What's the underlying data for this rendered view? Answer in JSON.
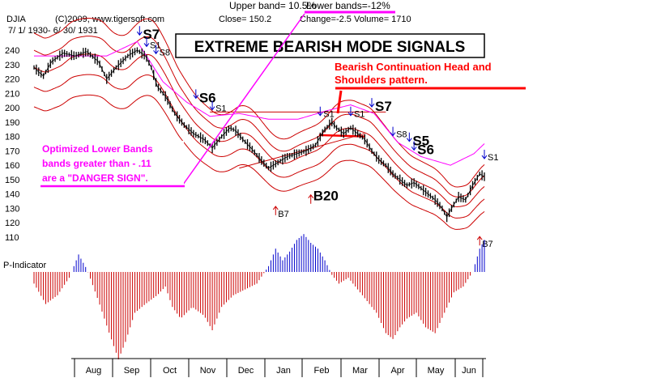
{
  "header": {
    "symbol": "DJIA",
    "copyright": "(C)2009, www.tigersoft.com",
    "close": "Close=  150.2",
    "change": "Change=-2.5",
    "volume": "Volume= 1710",
    "date_range": "7/ 1/ 1930- 6/ 30/ 1931",
    "upper_band": "Upper band= 10.5%",
    "lower_band": "Lower bands=-12%"
  },
  "title_box": "EXTREME BEARISH MODE SIGNALS",
  "annotations": {
    "head_shoulders_1": "Bearish Continuation Head and",
    "head_shoulders_2": "Shoulders pattern.",
    "optimized_1": "Optimized Lower Bands",
    "optimized_2": "bands greater than - .11",
    "optimized_3": "are a \"DANGER SIGN\"."
  },
  "colors": {
    "price": "#000000",
    "bands": "#cc0000",
    "outer_band": "#ff00ff",
    "annotation_red": "#ff0000",
    "annotation_magenta": "#ff00ff",
    "indicator_pos": "#0000cc",
    "indicator_neg": "#cc0000",
    "signal_arrow": "#0000cc",
    "buy_arrow": "#cc0000"
  },
  "chart_data": {
    "type": "line",
    "title": "EXTREME BEARISH MODE SIGNALS",
    "y_ticks": [
      240,
      230,
      220,
      210,
      200,
      190,
      180,
      170,
      160,
      150,
      140,
      130,
      120,
      110
    ],
    "ylim": [
      105,
      248
    ],
    "months": [
      "Aug",
      "Sep",
      "Oct",
      "Nov",
      "Dec",
      "Jan",
      "Feb",
      "Mar",
      "Apr",
      "May",
      "Jun"
    ],
    "price": {
      "name": "DJIA",
      "points": [
        [
          0,
          228
        ],
        [
          8,
          222
        ],
        [
          15,
          232
        ],
        [
          25,
          238
        ],
        [
          35,
          236
        ],
        [
          45,
          239
        ],
        [
          55,
          232
        ],
        [
          62,
          220
        ],
        [
          70,
          228
        ],
        [
          80,
          236
        ],
        [
          88,
          240
        ],
        [
          95,
          236
        ],
        [
          100,
          228
        ],
        [
          105,
          215
        ],
        [
          112,
          208
        ],
        [
          120,
          196
        ],
        [
          128,
          188
        ],
        [
          136,
          182
        ],
        [
          145,
          178
        ],
        [
          152,
          172
        ],
        [
          160,
          180
        ],
        [
          167,
          186
        ],
        [
          172,
          184
        ],
        [
          178,
          178
        ],
        [
          185,
          172
        ],
        [
          192,
          165
        ],
        [
          200,
          158
        ],
        [
          208,
          162
        ],
        [
          216,
          166
        ],
        [
          224,
          168
        ],
        [
          232,
          170
        ],
        [
          240,
          174
        ],
        [
          247,
          184
        ],
        [
          254,
          190
        ],
        [
          258,
          186
        ],
        [
          264,
          182
        ],
        [
          270,
          186
        ],
        [
          276,
          182
        ],
        [
          282,
          178
        ],
        [
          288,
          170
        ],
        [
          294,
          164
        ],
        [
          300,
          160
        ],
        [
          306,
          154
        ],
        [
          312,
          150
        ],
        [
          318,
          146
        ],
        [
          324,
          148
        ],
        [
          330,
          144
        ],
        [
          336,
          140
        ],
        [
          342,
          136
        ],
        [
          348,
          130
        ],
        [
          352,
          124
        ],
        [
          356,
          130
        ],
        [
          362,
          138
        ],
        [
          368,
          136
        ],
        [
          374,
          146
        ],
        [
          380,
          154
        ],
        [
          384,
          152
        ]
      ]
    },
    "ma_upper_band_pct": 10.5,
    "ma_lower_band_pct": -12,
    "outer_band": {
      "name": "",
      "points": [
        [
          62,
          236
        ],
        [
          88,
          246
        ],
        [
          110,
          218
        ],
        [
          130,
          204
        ],
        [
          150,
          194
        ],
        [
          175,
          196
        ],
        [
          200,
          192
        ],
        [
          225,
          192
        ],
        [
          250,
          198
        ],
        [
          270,
          202
        ],
        [
          290,
          196
        ],
        [
          310,
          176
        ],
        [
          330,
          166
        ],
        [
          355,
          160
        ],
        [
          375,
          168
        ],
        [
          384,
          175
        ]
      ]
    },
    "signals": [
      {
        "label": "S7",
        "kind": "sell",
        "x": 90,
        "y": 250
      },
      {
        "label": "S1",
        "kind": "sell",
        "x": 96,
        "y": 242
      },
      {
        "label": "S8",
        "kind": "sell",
        "x": 104,
        "y": 237
      },
      {
        "label": "S6",
        "kind": "sell",
        "x": 138,
        "y": 206
      },
      {
        "label": "S1",
        "kind": "sell",
        "x": 152,
        "y": 198
      },
      {
        "label": "S1",
        "kind": "sell",
        "x": 244,
        "y": 194
      },
      {
        "label": "S1",
        "kind": "sell",
        "x": 270,
        "y": 194
      },
      {
        "label": "S7",
        "kind": "sell",
        "x": 288,
        "y": 200
      },
      {
        "label": "S8",
        "kind": "sell",
        "x": 306,
        "y": 180
      },
      {
        "label": "S5",
        "kind": "sell",
        "x": 320,
        "y": 176
      },
      {
        "label": "S6",
        "kind": "sell",
        "x": 324,
        "y": 170
      },
      {
        "label": "S1",
        "kind": "sell",
        "x": 384,
        "y": 164
      },
      {
        "label": "B7",
        "kind": "buy",
        "x": 206,
        "y": 132
      },
      {
        "label": "B20",
        "kind": "buy",
        "x": 236,
        "y": 140
      },
      {
        "label": "B7",
        "kind": "buy",
        "x": 380,
        "y": 111
      }
    ],
    "neckline_y": 197,
    "indicator": {
      "name": "P-Indicator",
      "points": [
        [
          0,
          -20
        ],
        [
          10,
          -55
        ],
        [
          20,
          -40
        ],
        [
          30,
          -10
        ],
        [
          38,
          30
        ],
        [
          45,
          5
        ],
        [
          55,
          -50
        ],
        [
          65,
          -110
        ],
        [
          72,
          -150
        ],
        [
          78,
          -120
        ],
        [
          86,
          -70
        ],
        [
          95,
          -55
        ],
        [
          105,
          -40
        ],
        [
          112,
          -25
        ],
        [
          118,
          -60
        ],
        [
          125,
          -80
        ],
        [
          135,
          -60
        ],
        [
          145,
          -75
        ],
        [
          152,
          -100
        ],
        [
          160,
          -60
        ],
        [
          170,
          -40
        ],
        [
          180,
          -30
        ],
        [
          190,
          -20
        ],
        [
          200,
          10
        ],
        [
          206,
          40
        ],
        [
          212,
          20
        ],
        [
          218,
          35
        ],
        [
          224,
          55
        ],
        [
          230,
          65
        ],
        [
          236,
          50
        ],
        [
          242,
          40
        ],
        [
          248,
          20
        ],
        [
          254,
          -5
        ],
        [
          260,
          -20
        ],
        [
          268,
          -10
        ],
        [
          276,
          -30
        ],
        [
          284,
          -50
        ],
        [
          292,
          -70
        ],
        [
          300,
          -105
        ],
        [
          306,
          -115
        ],
        [
          312,
          -95
        ],
        [
          318,
          -80
        ],
        [
          326,
          -70
        ],
        [
          334,
          -95
        ],
        [
          342,
          -105
        ],
        [
          350,
          -70
        ],
        [
          358,
          -35
        ],
        [
          366,
          -25
        ],
        [
          374,
          0
        ],
        [
          380,
          40
        ],
        [
          384,
          55
        ]
      ]
    }
  }
}
